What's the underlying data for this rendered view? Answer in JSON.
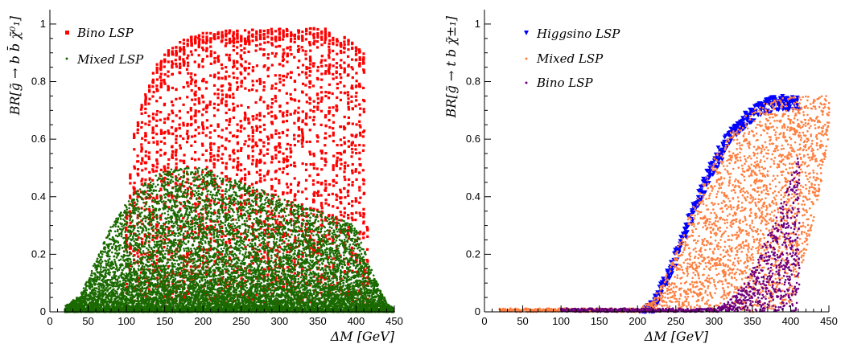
{
  "chart_data": [
    {
      "type": "scatter",
      "panel": "left",
      "xlabel": "ΔM [GeV]",
      "ylabel": "BR[g̃ → b b̄ χ̃⁰₁]",
      "xlim": [
        0,
        450
      ],
      "ylim": [
        0,
        1.05
      ],
      "x_ticks": [
        "0",
        "50",
        "100",
        "150",
        "200",
        "250",
        "300",
        "350",
        "400",
        "450"
      ],
      "y_ticks": [
        "0",
        "0.2",
        "0.4",
        "0.6",
        "0.8",
        "1"
      ],
      "legend_position": "top-left",
      "series": [
        {
          "name": "Bino LSP",
          "color": "#ff0000",
          "marker": "square",
          "x": [
            100,
            110,
            120,
            130,
            140,
            150,
            160,
            170,
            180,
            190,
            200,
            210,
            220,
            230,
            240,
            250,
            260,
            270,
            280,
            290,
            300,
            310,
            320,
            330,
            340,
            350,
            360,
            370,
            380,
            390,
            400,
            410,
            415
          ],
          "y_max": [
            0.35,
            0.62,
            0.72,
            0.8,
            0.86,
            0.9,
            0.92,
            0.94,
            0.95,
            0.96,
            0.97,
            0.97,
            0.975,
            0.98,
            0.98,
            0.98,
            0.98,
            0.98,
            0.985,
            0.985,
            0.985,
            0.985,
            0.985,
            0.985,
            0.985,
            0.985,
            0.985,
            0.97,
            0.96,
            0.95,
            0.93,
            0.9,
            0.3
          ],
          "y_min": [
            0.03,
            0.03,
            0.03,
            0.03,
            0.03,
            0.03,
            0.03,
            0.03,
            0.03,
            0.03,
            0.03,
            0.03,
            0.03,
            0.03,
            0.03,
            0.03,
            0.03,
            0.03,
            0.03,
            0.03,
            0.03,
            0.03,
            0.03,
            0.03,
            0.03,
            0.03,
            0.03,
            0.03,
            0.03,
            0.03,
            0.03,
            0.03,
            0.03
          ]
        },
        {
          "name": "Mixed LSP",
          "color": "#1a6a00",
          "marker": "dot",
          "x": [
            20,
            40,
            60,
            80,
            100,
            120,
            140,
            160,
            180,
            200,
            220,
            240,
            260,
            280,
            300,
            320,
            340,
            360,
            380,
            400,
            420,
            440,
            450
          ],
          "y_max": [
            0.02,
            0.06,
            0.18,
            0.3,
            0.38,
            0.44,
            0.48,
            0.5,
            0.5,
            0.5,
            0.48,
            0.46,
            0.44,
            0.42,
            0.4,
            0.38,
            0.36,
            0.34,
            0.32,
            0.3,
            0.15,
            0.03,
            0.01
          ]
        }
      ]
    },
    {
      "type": "scatter",
      "panel": "right",
      "xlabel": "ΔM [GeV]",
      "ylabel": "BR[g̃ → t b χ̃±₁]",
      "xlim": [
        0,
        450
      ],
      "ylim": [
        0,
        1.05
      ],
      "x_ticks": [
        "0",
        "50",
        "100",
        "150",
        "200",
        "250",
        "300",
        "350",
        "400",
        "450"
      ],
      "y_ticks": [
        "0",
        "0.2",
        "0.4",
        "0.6",
        "0.8",
        "1"
      ],
      "legend_position": "top-left",
      "series": [
        {
          "name": "Higgsino LSP",
          "color": "#0000ff",
          "marker": "triangle",
          "x": [
            205,
            220,
            240,
            260,
            280,
            300,
            320,
            340,
            360,
            380,
            400,
            410
          ],
          "y": [
            0.01,
            0.04,
            0.15,
            0.29,
            0.42,
            0.54,
            0.63,
            0.69,
            0.73,
            0.75,
            0.75,
            0.75
          ]
        },
        {
          "name": "Mixed LSP",
          "color": "#ff7f3f",
          "marker": "dot",
          "x": [
            20,
            100,
            200,
            220,
            240,
            260,
            280,
            300,
            320,
            340,
            360,
            380,
            400,
            420,
            440,
            450
          ],
          "y_max": [
            0.01,
            0.01,
            0.01,
            0.04,
            0.14,
            0.28,
            0.41,
            0.53,
            0.62,
            0.68,
            0.72,
            0.74,
            0.75,
            0.75,
            0.75,
            0.75
          ],
          "y_min": [
            0.0,
            0.0,
            0.0,
            0.0,
            0.0,
            0.0,
            0.0,
            0.0,
            0.0,
            0.0,
            0.0,
            0.01,
            0.03,
            0.2,
            0.45,
            0.6
          ]
        },
        {
          "name": "Bino LSP",
          "color": "#6e0080",
          "marker": "dot",
          "x": [
            100,
            200,
            300,
            320,
            340,
            360,
            380,
            400,
            412
          ],
          "y_max": [
            0.01,
            0.01,
            0.01,
            0.04,
            0.1,
            0.2,
            0.33,
            0.47,
            0.55
          ]
        }
      ]
    }
  ]
}
